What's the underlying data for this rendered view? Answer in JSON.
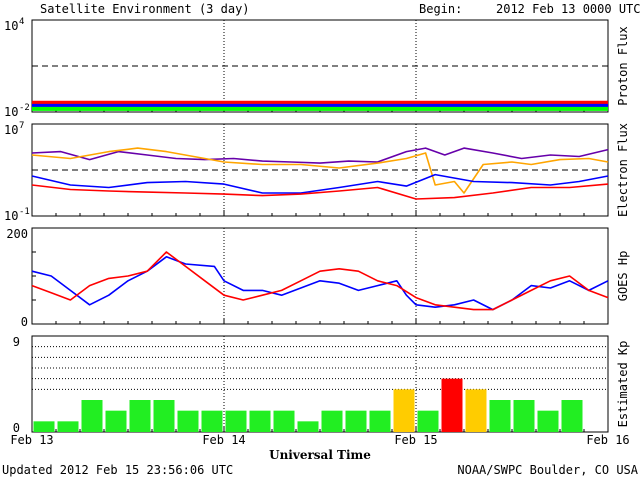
{
  "header": {
    "title": "Satellite Environment (3 day)",
    "begin_label": "Begin:",
    "begin_date": "2012 Feb 13 0000 UTC"
  },
  "footer": {
    "updated": "Updated 2012 Feb 15 23:56:06 UTC",
    "source": "NOAA/SWPC Boulder, CO USA"
  },
  "xaxis": {
    "title": "Universal Time",
    "ticks": [
      "Feb 13",
      "Feb 14",
      "Feb 15",
      "Feb 16"
    ]
  },
  "colors": {
    "red": "#ff0000",
    "blue": "#0000ff",
    "green": "#00ff00",
    "purple": "#6600aa",
    "orange": "#ffa500",
    "kp_green": "#22ee22",
    "kp_yellow": "#ffcc00",
    "kp_red": "#ff0000"
  },
  "chart_data": [
    {
      "type": "line",
      "panel": "proton",
      "ylabel": "Proton Flux",
      "yscale": "log",
      "ylim": [
        0.01,
        10000
      ],
      "ytick_labels": [
        {
          "base": "10",
          "exp": "4"
        },
        {
          "base": "10",
          "exp": "-2"
        }
      ],
      "threshold": 10,
      "x_range_days": [
        0,
        3
      ],
      "series": [
        {
          "color": "red",
          "x": [
            0,
            0.5,
            1,
            1.5,
            2,
            2.5,
            3
          ],
          "y": [
            0.04,
            0.04,
            0.04,
            0.04,
            0.04,
            0.04,
            0.04
          ]
        },
        {
          "color": "blue",
          "x": [
            0,
            0.5,
            1,
            1.5,
            2,
            2.5,
            3
          ],
          "y": [
            0.025,
            0.025,
            0.025,
            0.025,
            0.025,
            0.025,
            0.025
          ]
        },
        {
          "color": "green",
          "x": [
            0,
            0.5,
            1,
            1.5,
            2,
            2.5,
            3
          ],
          "y": [
            0.016,
            0.016,
            0.016,
            0.016,
            0.016,
            0.016,
            0.016
          ]
        }
      ]
    },
    {
      "type": "line",
      "panel": "electron",
      "ylabel": "Electron Flux",
      "yscale": "log",
      "ylim": [
        0.1,
        10000000
      ],
      "ytick_labels": [
        {
          "base": "10",
          "exp": "7"
        },
        {
          "base": "10",
          "exp": "-1"
        }
      ],
      "threshold": 1000,
      "x_range_days": [
        0,
        3
      ],
      "series": [
        {
          "color": "purple",
          "x": [
            0,
            0.15,
            0.3,
            0.45,
            0.6,
            0.75,
            0.9,
            1.05,
            1.2,
            1.35,
            1.5,
            1.65,
            1.8,
            1.95,
            2.05,
            2.15,
            2.25,
            2.4,
            2.55,
            2.7,
            2.85,
            3
          ],
          "y": [
            30000,
            40000,
            8000,
            40000,
            20000,
            10000,
            8000,
            10000,
            6000,
            5000,
            4000,
            6000,
            5000,
            40000,
            80000,
            20000,
            80000,
            30000,
            10000,
            20000,
            15000,
            60000
          ]
        },
        {
          "color": "orange",
          "x": [
            0,
            0.2,
            0.4,
            0.55,
            0.7,
            0.9,
            1.0,
            1.2,
            1.4,
            1.6,
            1.8,
            1.95,
            2.05,
            2.1,
            2.2,
            2.25,
            2.35,
            2.5,
            2.6,
            2.75,
            2.9,
            3
          ],
          "y": [
            20000,
            10000,
            40000,
            80000,
            40000,
            10000,
            5000,
            3000,
            3000,
            1500,
            4000,
            10000,
            30000,
            50,
            100,
            10,
            3000,
            5000,
            3000,
            8000,
            10000,
            5000
          ]
        },
        {
          "color": "blue",
          "x": [
            0,
            0.2,
            0.4,
            0.6,
            0.8,
            1.0,
            1.2,
            1.4,
            1.6,
            1.8,
            1.95,
            2.1,
            2.3,
            2.5,
            2.7,
            2.85,
            3
          ],
          "y": [
            300,
            50,
            30,
            80,
            100,
            60,
            10,
            10,
            30,
            100,
            40,
            400,
            100,
            80,
            50,
            100,
            300
          ]
        },
        {
          "color": "red",
          "x": [
            0,
            0.2,
            0.4,
            0.6,
            0.8,
            1.0,
            1.2,
            1.4,
            1.6,
            1.8,
            2.0,
            2.2,
            2.4,
            2.6,
            2.8,
            3
          ],
          "y": [
            50,
            20,
            15,
            12,
            10,
            8,
            6,
            8,
            15,
            30,
            3,
            4,
            10,
            30,
            30,
            60
          ]
        }
      ]
    },
    {
      "type": "line",
      "panel": "hp",
      "ylabel": "GOES Hp",
      "yscale": "linear",
      "ylim": [
        0,
        200
      ],
      "yticks": [
        0,
        100,
        200
      ],
      "ytick_labels": [
        "0",
        "",
        "200"
      ],
      "x_range_days": [
        0,
        3
      ],
      "series": [
        {
          "color": "blue",
          "x": [
            0,
            0.1,
            0.2,
            0.3,
            0.4,
            0.5,
            0.6,
            0.7,
            0.8,
            0.95,
            1.0,
            1.1,
            1.2,
            1.3,
            1.4,
            1.5,
            1.6,
            1.7,
            1.8,
            1.9,
            1.95,
            2.0,
            2.1,
            2.2,
            2.3,
            2.4,
            2.5,
            2.6,
            2.7,
            2.8,
            2.9,
            3
          ],
          "y": [
            110,
            100,
            70,
            40,
            60,
            90,
            110,
            140,
            125,
            120,
            90,
            70,
            70,
            60,
            75,
            90,
            85,
            70,
            80,
            90,
            60,
            40,
            35,
            40,
            50,
            30,
            50,
            80,
            75,
            90,
            70,
            90
          ]
        },
        {
          "color": "red",
          "x": [
            0,
            0.1,
            0.2,
            0.3,
            0.4,
            0.5,
            0.6,
            0.7,
            0.8,
            0.9,
            1.0,
            1.1,
            1.2,
            1.3,
            1.4,
            1.5,
            1.6,
            1.7,
            1.8,
            1.9,
            2.0,
            2.1,
            2.2,
            2.3,
            2.4,
            2.5,
            2.6,
            2.7,
            2.8,
            2.9,
            3
          ],
          "y": [
            80,
            65,
            50,
            80,
            95,
            100,
            110,
            150,
            120,
            90,
            60,
            50,
            60,
            70,
            90,
            110,
            115,
            110,
            90,
            80,
            55,
            40,
            35,
            30,
            30,
            50,
            70,
            90,
            100,
            70,
            55
          ]
        }
      ]
    },
    {
      "type": "bar",
      "panel": "kp",
      "ylabel": "Estimated Kp",
      "ylim": [
        0,
        9
      ],
      "ytick_labels": [
        "0",
        "9"
      ],
      "gridlines": [
        4,
        5,
        6,
        7,
        8
      ],
      "bar_width_hours": 3,
      "values": [
        1,
        1,
        3,
        2,
        3,
        3,
        2,
        2,
        2,
        2,
        2,
        1,
        2,
        2,
        2,
        4,
        2,
        5,
        4,
        3,
        3,
        2,
        3,
        0
      ],
      "colors": [
        "kp_green",
        "kp_green",
        "kp_green",
        "kp_green",
        "kp_green",
        "kp_green",
        "kp_green",
        "kp_green",
        "kp_green",
        "kp_green",
        "kp_green",
        "kp_green",
        "kp_green",
        "kp_green",
        "kp_green",
        "kp_yellow",
        "kp_green",
        "kp_red",
        "kp_yellow",
        "kp_green",
        "kp_green",
        "kp_green",
        "kp_green",
        "kp_green"
      ]
    }
  ]
}
